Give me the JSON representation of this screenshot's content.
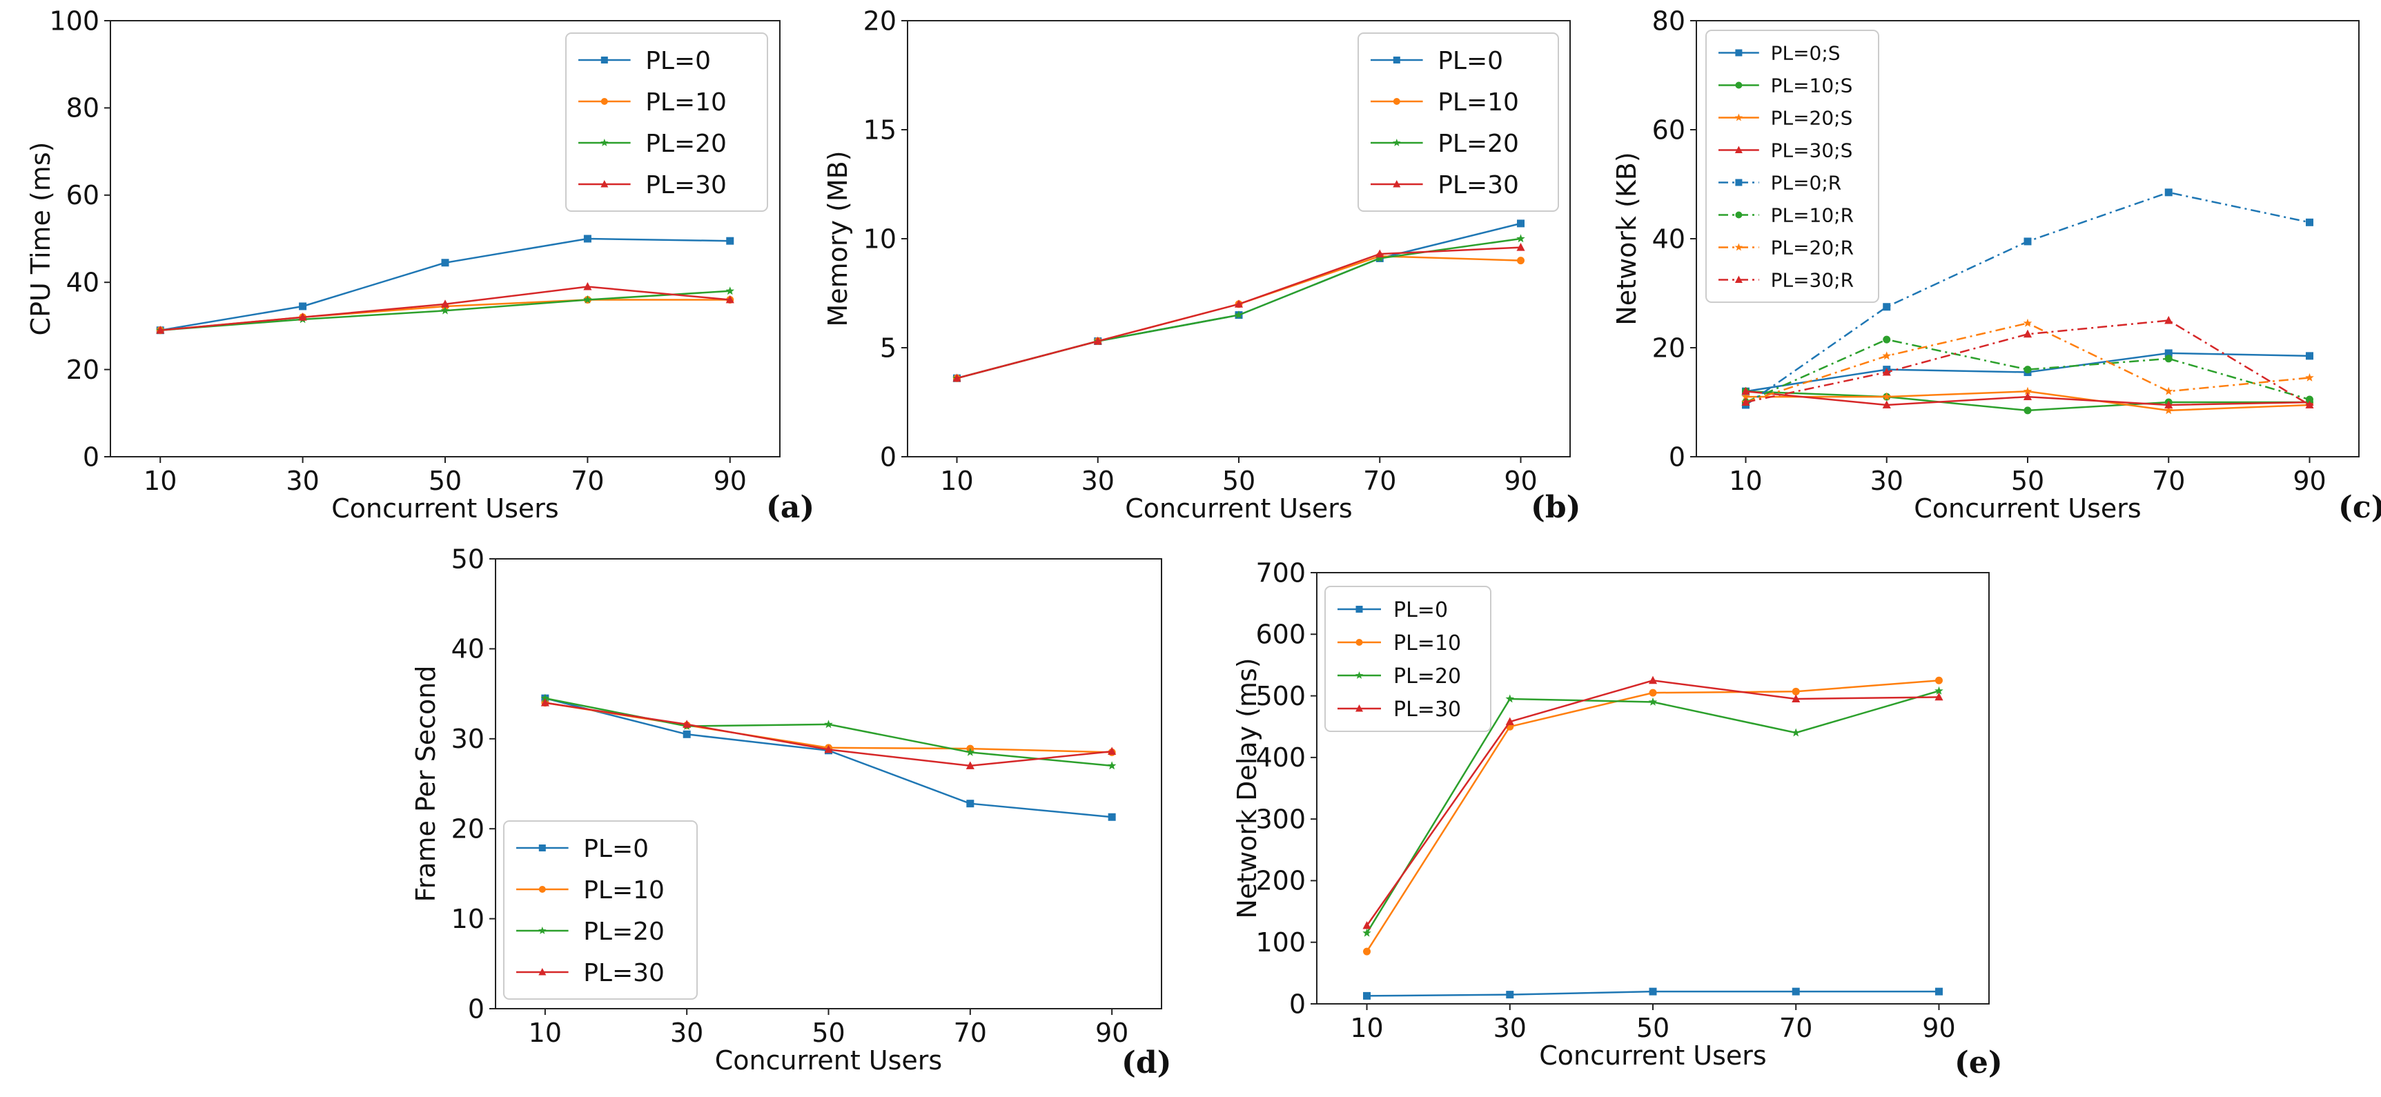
{
  "colors": {
    "PL=0": "#1f77b4",
    "PL=10": "#ff7f0e",
    "PL=20": "#2ca02c",
    "PL=30": "#d62728"
  },
  "chart_data": [
    {
      "id": "a",
      "type": "line",
      "panel_label": "(a)",
      "xlabel": "Concurrent Users",
      "ylabel": "CPU Time (ms)",
      "x": [
        10,
        30,
        50,
        70,
        90
      ],
      "xlim": [
        3,
        97
      ],
      "ylim": [
        0,
        100
      ],
      "yticks": [
        0,
        20,
        40,
        60,
        80,
        100
      ],
      "legend_position": "top-right",
      "series": [
        {
          "name": "PL=0",
          "color": "#1f77b4",
          "marker": "square",
          "dash": "solid",
          "values": [
            29,
            34.5,
            44.5,
            50,
            49.5
          ]
        },
        {
          "name": "PL=10",
          "color": "#ff7f0e",
          "marker": "circle",
          "dash": "solid",
          "values": [
            29,
            32,
            34.5,
            36,
            36
          ]
        },
        {
          "name": "PL=20",
          "color": "#2ca02c",
          "marker": "star",
          "dash": "solid",
          "values": [
            29,
            31.5,
            33.5,
            36,
            38
          ]
        },
        {
          "name": "PL=30",
          "color": "#d62728",
          "marker": "triangle",
          "dash": "solid",
          "values": [
            29,
            32,
            35,
            39,
            36
          ]
        }
      ]
    },
    {
      "id": "b",
      "type": "line",
      "panel_label": "(b)",
      "xlabel": "Concurrent Users",
      "ylabel": "Memory (MB)",
      "x": [
        10,
        30,
        50,
        70,
        90
      ],
      "xlim": [
        3,
        97
      ],
      "ylim": [
        0,
        20
      ],
      "yticks": [
        0,
        5,
        10,
        15,
        20
      ],
      "legend_position": "top-right",
      "series": [
        {
          "name": "PL=0",
          "color": "#1f77b4",
          "marker": "square",
          "dash": "solid",
          "values": [
            3.6,
            5.3,
            6.5,
            9.1,
            10.7
          ]
        },
        {
          "name": "PL=10",
          "color": "#ff7f0e",
          "marker": "circle",
          "dash": "solid",
          "values": [
            3.6,
            5.3,
            7.0,
            9.2,
            9.0
          ]
        },
        {
          "name": "PL=20",
          "color": "#2ca02c",
          "marker": "star",
          "dash": "solid",
          "values": [
            3.6,
            5.3,
            6.5,
            9.1,
            10.0
          ]
        },
        {
          "name": "PL=30",
          "color": "#d62728",
          "marker": "triangle",
          "dash": "solid",
          "values": [
            3.6,
            5.3,
            7.0,
            9.3,
            9.6
          ]
        }
      ]
    },
    {
      "id": "c",
      "type": "line",
      "panel_label": "(c)",
      "xlabel": "Concurrent Users",
      "ylabel": "Network (KB)",
      "x": [
        10,
        30,
        50,
        70,
        90
      ],
      "xlim": [
        3,
        97
      ],
      "ylim": [
        0,
        80
      ],
      "yticks": [
        0,
        20,
        40,
        60,
        80
      ],
      "legend_position": "top-left",
      "series": [
        {
          "name": "PL=0;S",
          "color": "#1f77b4",
          "marker": "square",
          "dash": "solid",
          "values": [
            12,
            16,
            15.5,
            19,
            18.5
          ]
        },
        {
          "name": "PL=10;S",
          "color": "#2ca02c",
          "marker": "circle",
          "dash": "solid",
          "values": [
            12,
            11,
            8.5,
            10,
            10
          ]
        },
        {
          "name": "PL=20;S",
          "color": "#ff7f0e",
          "marker": "star",
          "dash": "solid",
          "values": [
            11,
            11,
            12,
            8.5,
            9.5
          ]
        },
        {
          "name": "PL=30;S",
          "color": "#d62728",
          "marker": "triangle",
          "dash": "solid",
          "values": [
            12,
            9.5,
            11,
            9.5,
            10
          ]
        },
        {
          "name": "PL=0;R",
          "color": "#1f77b4",
          "marker": "square",
          "dash": "dashdot",
          "values": [
            9.5,
            27.5,
            39.5,
            48.5,
            43
          ]
        },
        {
          "name": "PL=10;R",
          "color": "#2ca02c",
          "marker": "circle",
          "dash": "dashdot",
          "values": [
            10,
            21.5,
            16,
            18,
            10.5
          ]
        },
        {
          "name": "PL=20;R",
          "color": "#ff7f0e",
          "marker": "star",
          "dash": "dashdot",
          "values": [
            10,
            18.5,
            24.5,
            12,
            14.5
          ]
        },
        {
          "name": "PL=30;R",
          "color": "#d62728",
          "marker": "triangle",
          "dash": "dashdot",
          "values": [
            10,
            15.5,
            22.5,
            25,
            9.5
          ]
        }
      ]
    },
    {
      "id": "d",
      "type": "line",
      "panel_label": "(d)",
      "xlabel": "Concurrent Users",
      "ylabel": "Frame Per Second",
      "x": [
        10,
        30,
        50,
        70,
        90
      ],
      "xlim": [
        3,
        97
      ],
      "ylim": [
        0,
        50
      ],
      "yticks": [
        0,
        10,
        20,
        30,
        40,
        50
      ],
      "legend_position": "bottom-left",
      "series": [
        {
          "name": "PL=0",
          "color": "#1f77b4",
          "marker": "square",
          "dash": "solid",
          "values": [
            34.5,
            30.5,
            28.7,
            22.8,
            21.3
          ]
        },
        {
          "name": "PL=10",
          "color": "#ff7f0e",
          "marker": "circle",
          "dash": "solid",
          "values": [
            34,
            31.5,
            29,
            28.9,
            28.5
          ]
        },
        {
          "name": "PL=20",
          "color": "#2ca02c",
          "marker": "star",
          "dash": "solid",
          "values": [
            34.5,
            31.4,
            31.6,
            28.5,
            27
          ]
        },
        {
          "name": "PL=30",
          "color": "#d62728",
          "marker": "triangle",
          "dash": "solid",
          "values": [
            34,
            31.6,
            28.8,
            27,
            28.6
          ]
        }
      ]
    },
    {
      "id": "e",
      "type": "line",
      "panel_label": "(e)",
      "xlabel": "Concurrent Users",
      "ylabel": "Network Delay (ms)",
      "x": [
        10,
        30,
        50,
        70,
        90
      ],
      "xlim": [
        3,
        97
      ],
      "ylim": [
        0,
        700
      ],
      "yticks": [
        0,
        100,
        200,
        300,
        400,
        500,
        600,
        700
      ],
      "legend_position": "top-left",
      "series": [
        {
          "name": "PL=0",
          "color": "#1f77b4",
          "marker": "square",
          "dash": "solid",
          "values": [
            13,
            15,
            20,
            20,
            20
          ]
        },
        {
          "name": "PL=10",
          "color": "#ff7f0e",
          "marker": "circle",
          "dash": "solid",
          "values": [
            85,
            450,
            505,
            507,
            525
          ]
        },
        {
          "name": "PL=20",
          "color": "#2ca02c",
          "marker": "star",
          "dash": "solid",
          "values": [
            115,
            495,
            490,
            440,
            508
          ]
        },
        {
          "name": "PL=30",
          "color": "#d62728",
          "marker": "triangle",
          "dash": "solid",
          "values": [
            127,
            458,
            525,
            495,
            498
          ]
        }
      ]
    }
  ]
}
